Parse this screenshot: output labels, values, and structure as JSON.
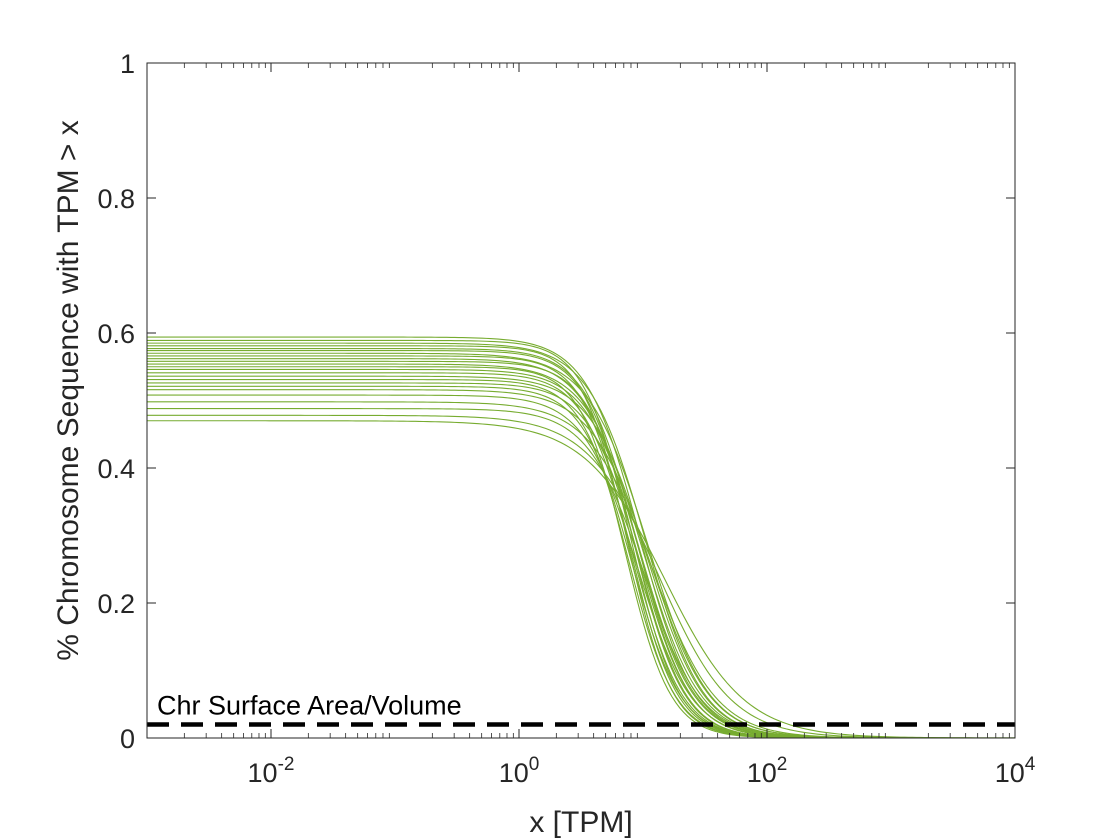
{
  "chart_data": {
    "type": "line",
    "title": "",
    "xlabel": "x [TPM]",
    "ylabel": "% Chromosome Sequence with TPM > x",
    "xscale": "log",
    "xlim": [
      0.001,
      10000
    ],
    "ylim": [
      0,
      1
    ],
    "x_ticks": [
      {
        "base": "10",
        "exp": "-2",
        "value": 0.01
      },
      {
        "base": "10",
        "exp": "0",
        "value": 1
      },
      {
        "base": "10",
        "exp": "2",
        "value": 100
      },
      {
        "base": "10",
        "exp": "4",
        "value": 10000
      }
    ],
    "y_ticks": [
      {
        "label": "0",
        "value": 0
      },
      {
        "label": "0.2",
        "value": 0.2
      },
      {
        "label": "0.4",
        "value": 0.4
      },
      {
        "label": "0.6",
        "value": 0.6
      },
      {
        "label": "0.8",
        "value": 0.8
      },
      {
        "label": "1",
        "value": 1
      }
    ],
    "grid": false,
    "series_color": "#77AC30",
    "curve_model": "y = plateau / (1 + (x / half_point)^steepness)",
    "series": [
      {
        "plateau": 0.594,
        "half_point": 9.5,
        "steepness": 2.0
      },
      {
        "plateau": 0.589,
        "half_point": 8.0,
        "steepness": 2.3
      },
      {
        "plateau": 0.585,
        "half_point": 10.5,
        "steepness": 1.9
      },
      {
        "plateau": 0.581,
        "half_point": 7.5,
        "steepness": 2.4
      },
      {
        "plateau": 0.577,
        "half_point": 9.0,
        "steepness": 2.1
      },
      {
        "plateau": 0.574,
        "half_point": 8.5,
        "steepness": 2.2
      },
      {
        "plateau": 0.57,
        "half_point": 11.0,
        "steepness": 1.8
      },
      {
        "plateau": 0.566,
        "half_point": 7.8,
        "steepness": 2.3
      },
      {
        "plateau": 0.562,
        "half_point": 9.2,
        "steepness": 2.0
      },
      {
        "plateau": 0.558,
        "half_point": 8.8,
        "steepness": 2.2
      },
      {
        "plateau": 0.554,
        "half_point": 10.0,
        "steepness": 1.9
      },
      {
        "plateau": 0.55,
        "half_point": 7.2,
        "steepness": 2.4
      },
      {
        "plateau": 0.546,
        "half_point": 9.6,
        "steepness": 2.0
      },
      {
        "plateau": 0.541,
        "half_point": 8.3,
        "steepness": 2.2
      },
      {
        "plateau": 0.536,
        "half_point": 10.8,
        "steepness": 1.9
      },
      {
        "plateau": 0.531,
        "half_point": 7.6,
        "steepness": 2.3
      },
      {
        "plateau": 0.526,
        "half_point": 9.4,
        "steepness": 2.1
      },
      {
        "plateau": 0.521,
        "half_point": 8.1,
        "steepness": 2.2
      },
      {
        "plateau": 0.516,
        "half_point": 11.5,
        "steepness": 1.8
      },
      {
        "plateau": 0.508,
        "half_point": 9.0,
        "steepness": 2.0
      },
      {
        "plateau": 0.498,
        "half_point": 12.0,
        "steepness": 1.7
      },
      {
        "plateau": 0.488,
        "half_point": 10.2,
        "steepness": 1.9
      },
      {
        "plateau": 0.478,
        "half_point": 13.5,
        "steepness": 1.5
      },
      {
        "plateau": 0.47,
        "half_point": 15.0,
        "steepness": 1.35
      }
    ],
    "reference_line": {
      "label": "Chr Surface Area/Volume",
      "y": 0.02,
      "color": "#000000",
      "style": "dashed"
    }
  }
}
